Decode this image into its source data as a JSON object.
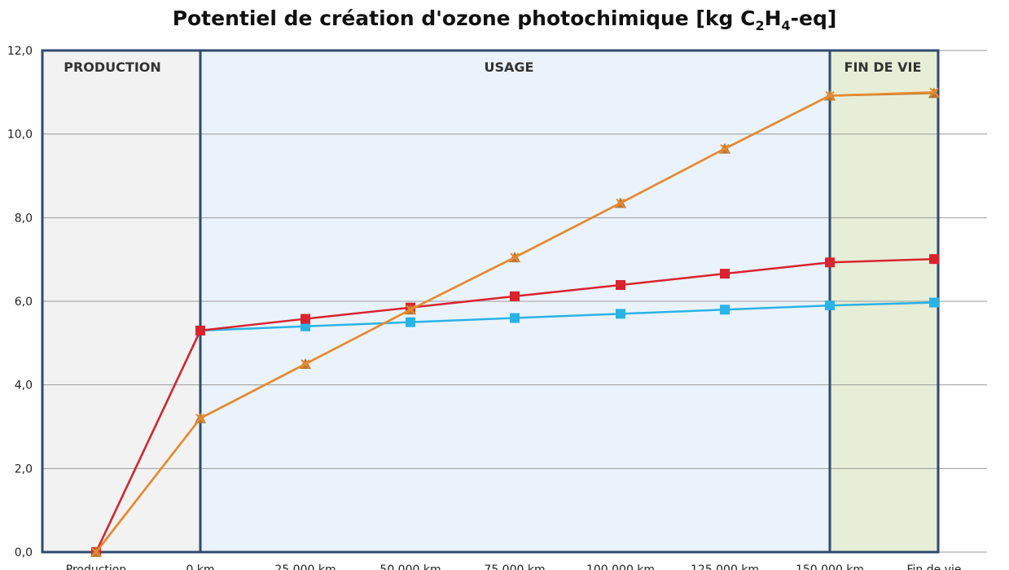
{
  "chart_data": {
    "type": "line",
    "title_parts": [
      "Potentiel de création d'ozone photochimique [kg C",
      "2",
      "H",
      "4",
      "-eq]"
    ],
    "categories": [
      "Production",
      "0 km",
      "25 000 km",
      "50 000 km",
      "75 000 km",
      "100 000 km",
      "125 000 km",
      "150 000 km",
      "Fin de vie"
    ],
    "ylim": [
      0,
      12
    ],
    "yticks": [
      "0,0",
      "2,0",
      "4,0",
      "6,0",
      "8,0",
      "10,0",
      "12,0"
    ],
    "grid": true,
    "phases": [
      {
        "label": "PRODUCTION",
        "from": 0,
        "to": 1,
        "color": "#f2f2f2"
      },
      {
        "label": "USAGE",
        "from": 1,
        "to": 7,
        "color": "#eaf3fb"
      },
      {
        "label": "FIN DE VIE",
        "from": 7,
        "to": 8,
        "color": "#e6eed7"
      }
    ],
    "series": [
      {
        "values": [
          0,
          5.3,
          5.4,
          5.5,
          5.6,
          5.7,
          5.8,
          5.9,
          5.97
        ],
        "color": "#29b3e6",
        "marker": "square"
      },
      {
        "values": [
          0,
          5.3,
          5.58,
          5.85,
          6.12,
          6.39,
          6.66,
          6.93,
          7.01
        ],
        "color": "#d9232e",
        "marker": "square"
      },
      {
        "values": [
          0,
          3.2,
          4.5,
          5.8,
          7.05,
          8.35,
          9.65,
          10.92,
          10.98
        ],
        "color": "#b07a3a",
        "marker": "triangle"
      },
      {
        "values": [
          0,
          3.2,
          4.5,
          5.8,
          7.05,
          8.35,
          9.65,
          10.92,
          11.0
        ],
        "color": "#e8892e",
        "marker": "x"
      }
    ]
  }
}
